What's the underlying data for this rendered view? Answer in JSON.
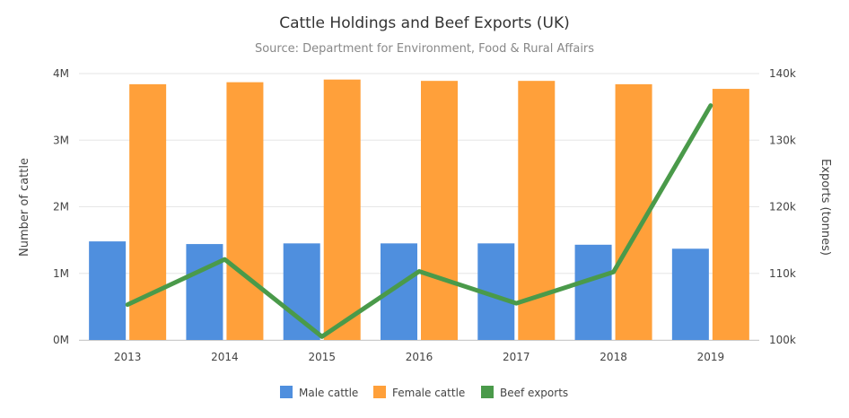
{
  "chart_data": {
    "type": "bar",
    "title": "Cattle Holdings and Beef Exports (UK)",
    "subtitle": "Source: Department for Environment, Food & Rural Affairs",
    "categories": [
      "2013",
      "2014",
      "2015",
      "2016",
      "2017",
      "2018",
      "2019"
    ],
    "y_left": {
      "label": "Number of cattle",
      "range": [
        0,
        4000000
      ],
      "ticks": [
        0,
        1000000,
        2000000,
        3000000,
        4000000
      ],
      "tick_labels": [
        "0M",
        "1M",
        "2M",
        "3M",
        "4M"
      ]
    },
    "y_right": {
      "label": "Exports (tonnes)",
      "range": [
        100000,
        140000
      ],
      "ticks": [
        100000,
        110000,
        120000,
        130000,
        140000
      ],
      "tick_labels": [
        "100k",
        "110k",
        "120k",
        "130k",
        "140k"
      ]
    },
    "grid": true,
    "legend_position": "bottom",
    "series": [
      {
        "name": "Male cattle",
        "type": "bar",
        "axis": "left",
        "color": "#4f8fde",
        "values": [
          1480000,
          1440000,
          1450000,
          1450000,
          1450000,
          1430000,
          1370000
        ]
      },
      {
        "name": "Female cattle",
        "type": "bar",
        "axis": "left",
        "color": "#ffa03a",
        "values": [
          3840000,
          3870000,
          3910000,
          3890000,
          3890000,
          3840000,
          3770000
        ]
      },
      {
        "name": "Beef exports",
        "type": "line",
        "axis": "right",
        "color": "#4a9a4a",
        "values": [
          105300,
          112100,
          100500,
          110300,
          105500,
          110200,
          135200
        ]
      }
    ]
  }
}
